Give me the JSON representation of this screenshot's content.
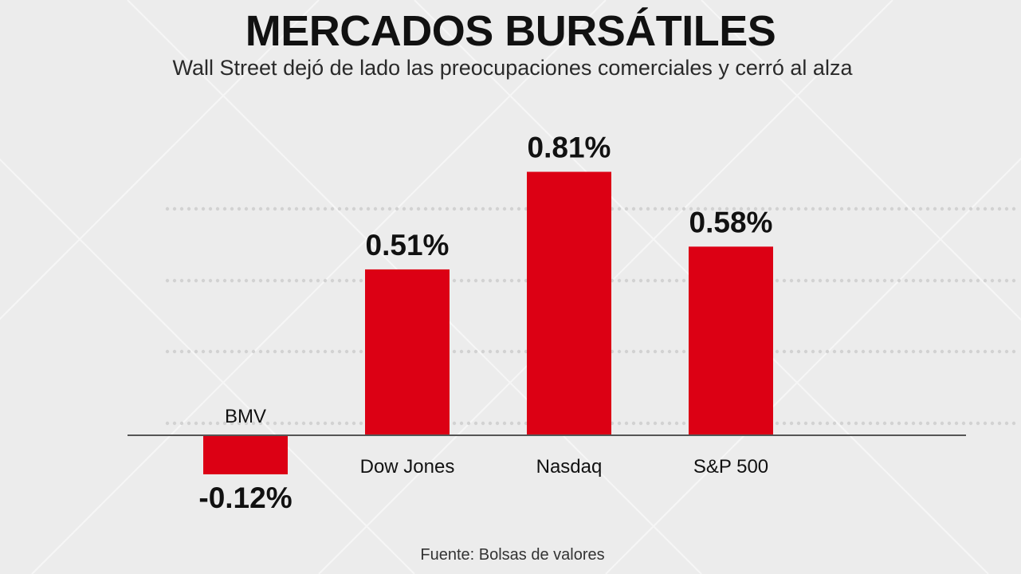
{
  "title": "MERCADOS BURSÁTILES",
  "subtitle": "Wall Street dejó de lado las preocupaciones comerciales y cerró al alza",
  "source": "Fuente: Bolsas de valores",
  "colors": {
    "bar": "#dc0014",
    "text": "#111111",
    "baseline": "#555555",
    "dots": "#d2d2d2"
  },
  "chart_data": {
    "type": "bar",
    "categories": [
      "BMV",
      "Dow Jones",
      "Nasdaq",
      "S&P 500"
    ],
    "values": [
      -0.12,
      0.51,
      0.81,
      0.58
    ],
    "value_labels": [
      "-0.12%",
      "0.51%",
      "0.81%",
      "0.58%"
    ],
    "unit": "%",
    "title": "MERCADOS BURSÁTILES",
    "xlabel": "",
    "ylabel": "",
    "grid": false,
    "legend": "none"
  }
}
